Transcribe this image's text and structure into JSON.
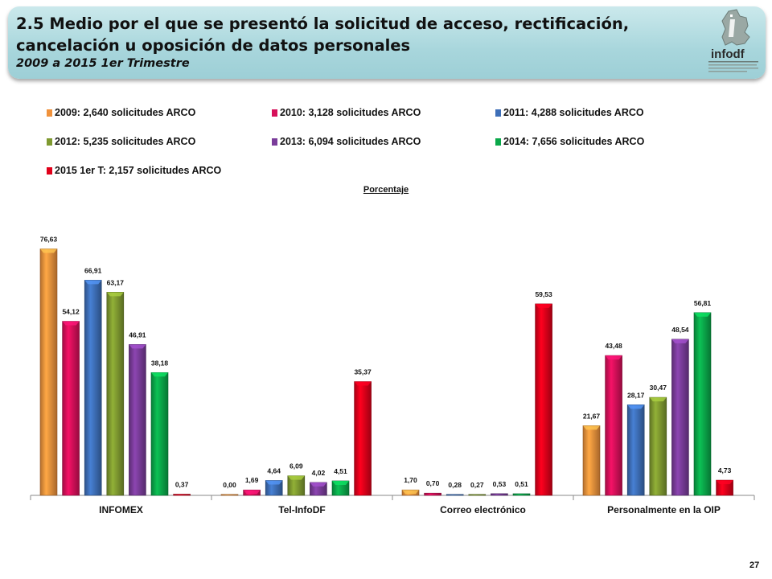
{
  "header": {
    "title": "2.5 Medio por el que se presentó la solicitud de acceso, rectificación, cancelación u oposición de datos personales",
    "subtitle": "2009 a 2015 1er Trimestre",
    "logo_text": "infodf",
    "logo_caption": "Instituto de Acceso a la Información Pública y Protección de Datos Personales del Distrito Federal"
  },
  "page_number": "27",
  "colors": {
    "header_bg": "#a8d6dc",
    "series": [
      "#f0923c",
      "#d6105a",
      "#3e6fb8",
      "#7f9a30",
      "#7a3c9a",
      "#0aa84a",
      "#e0001a"
    ]
  },
  "chart_data": {
    "type": "bar",
    "title": "",
    "ylabel": "Porcentaje",
    "xlabel": "",
    "ylim": [
      0,
      80
    ],
    "grid": false,
    "legend_position": "top",
    "categories": [
      "INFOMEX",
      "Tel-InfoDF",
      "Correo electrónico",
      "Personalmente en la OIP"
    ],
    "series": [
      {
        "name": "2009: 2,640 solicitudes ARCO",
        "values": [
          76.63,
          0.0,
          1.7,
          21.67
        ],
        "labels": [
          "76,63",
          "0,00",
          "1,70",
          "21,67"
        ]
      },
      {
        "name": "2010: 3,128 solicitudes ARCO",
        "values": [
          54.12,
          1.69,
          0.7,
          43.48
        ],
        "labels": [
          "54,12",
          "1,69",
          "0,70",
          "43,48"
        ]
      },
      {
        "name": "2011: 4,288 solicitudes ARCO",
        "values": [
          66.91,
          4.64,
          0.28,
          28.17
        ],
        "labels": [
          "66,91",
          "4,64",
          "0,28",
          "28,17"
        ]
      },
      {
        "name": "2012: 5,235 solicitudes ARCO",
        "values": [
          63.17,
          6.09,
          0.27,
          30.47
        ],
        "labels": [
          "63,17",
          "6,09",
          "0,27",
          "30,47"
        ]
      },
      {
        "name": "2013: 6,094 solicitudes ARCO",
        "values": [
          46.91,
          4.02,
          0.53,
          48.54
        ],
        "labels": [
          "46,91",
          "4,02",
          "0,53",
          "48,54"
        ]
      },
      {
        "name": "2014: 7,656 solicitudes ARCO",
        "values": [
          38.18,
          4.51,
          0.51,
          56.81
        ],
        "labels": [
          "38,18",
          "4,51",
          "0,51",
          "56,81"
        ]
      },
      {
        "name": "2015 1er T: 2,157 solicitudes ARCO",
        "values": [
          0.37,
          35.37,
          59.53,
          4.73
        ],
        "labels": [
          "0,37",
          "35,37",
          "59,53",
          "4,73"
        ]
      }
    ]
  }
}
